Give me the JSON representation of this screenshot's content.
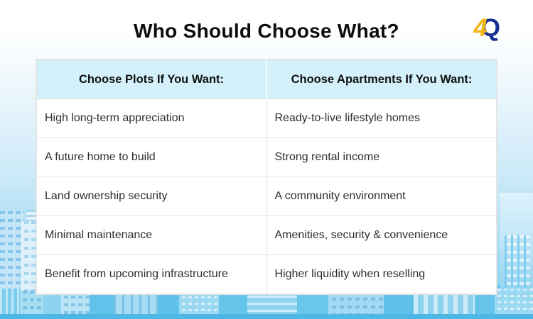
{
  "title": "Who Should Choose What?",
  "logo": {
    "four": "4",
    "q": "Q",
    "yellow": "#F2B718",
    "navy": "#1B2F92"
  },
  "table": {
    "headers": [
      "Choose Plots If You Want:",
      "Choose Apartments If You Want:"
    ],
    "rows": [
      [
        "High long-term appreciation",
        "Ready-to-live lifestyle homes"
      ],
      [
        "A future home to build",
        "Strong rental income"
      ],
      [
        "Land ownership security",
        "A community environment"
      ],
      [
        "Minimal maintenance",
        "Amenities, security & convenience"
      ],
      [
        "Benefit from upcoming infrastructure",
        "Higher liquidity when reselling"
      ]
    ],
    "header_bg": "#D4F1FB",
    "border_color": "#E4E4E4",
    "row_bg": "#FFFFFF"
  },
  "background": {
    "gradient_top": "#FFFFFF",
    "gradient_bottom": "#74CBEE",
    "skyline_blue_light": "#A8DDF4",
    "skyline_blue_medium": "#7CCDEE",
    "skyline_blue_dark": "#4FB7E5"
  }
}
